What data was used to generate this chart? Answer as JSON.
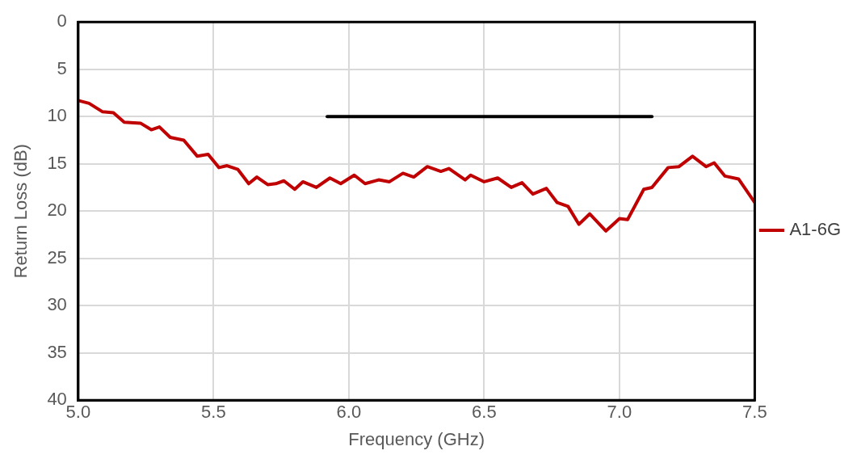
{
  "chart_data": {
    "type": "line",
    "xlabel": "Frequency (GHz)",
    "ylabel": "Return Loss (dB)",
    "xlim": [
      5.0,
      7.5
    ],
    "xticks": [
      {
        "value": 5.0,
        "label": "5.0"
      },
      {
        "value": 5.5,
        "label": "5.5"
      },
      {
        "value": 6.0,
        "label": "6.0"
      },
      {
        "value": 6.5,
        "label": "6.5"
      },
      {
        "value": 7.0,
        "label": "7.0"
      },
      {
        "value": 7.5,
        "label": "7.5"
      }
    ],
    "ylim": [
      40,
      0
    ],
    "yticks": [
      0,
      5,
      10,
      15,
      20,
      25,
      30,
      35,
      40
    ],
    "grid": true,
    "legend": "right",
    "marker": "none",
    "line_style": "solid",
    "series": [
      {
        "name": "A1-6G",
        "color": "#c00000",
        "x": [
          5.0,
          5.04,
          5.09,
          5.13,
          5.17,
          5.23,
          5.27,
          5.3,
          5.34,
          5.39,
          5.44,
          5.48,
          5.52,
          5.55,
          5.59,
          5.63,
          5.66,
          5.7,
          5.73,
          5.76,
          5.8,
          5.83,
          5.88,
          5.93,
          5.97,
          6.02,
          6.06,
          6.11,
          6.15,
          6.2,
          6.24,
          6.29,
          6.34,
          6.37,
          6.43,
          6.45,
          6.5,
          6.55,
          6.6,
          6.64,
          6.68,
          6.73,
          6.77,
          6.81,
          6.85,
          6.89,
          6.95,
          7.0,
          7.03,
          7.09,
          7.12,
          7.18,
          7.22,
          7.27,
          7.32,
          7.35,
          7.39,
          7.44,
          7.5
        ],
        "values": [
          8.3,
          8.6,
          9.5,
          9.6,
          10.6,
          10.7,
          11.4,
          11.1,
          12.2,
          12.5,
          14.2,
          14.0,
          15.4,
          15.2,
          15.6,
          17.1,
          16.4,
          17.2,
          17.1,
          16.8,
          17.7,
          16.9,
          17.5,
          16.5,
          17.1,
          16.2,
          17.1,
          16.7,
          16.9,
          16.0,
          16.4,
          15.3,
          15.8,
          15.5,
          16.7,
          16.2,
          16.9,
          16.5,
          17.5,
          17.0,
          18.2,
          17.6,
          19.1,
          19.5,
          21.4,
          20.3,
          22.1,
          20.8,
          20.9,
          17.7,
          17.5,
          15.4,
          15.3,
          14.2,
          15.3,
          14.9,
          16.3,
          16.6,
          19.1
        ]
      },
      {
        "color": "#000000",
        "x": [
          5.92,
          7.12
        ],
        "values": [
          10,
          10
        ]
      }
    ]
  }
}
